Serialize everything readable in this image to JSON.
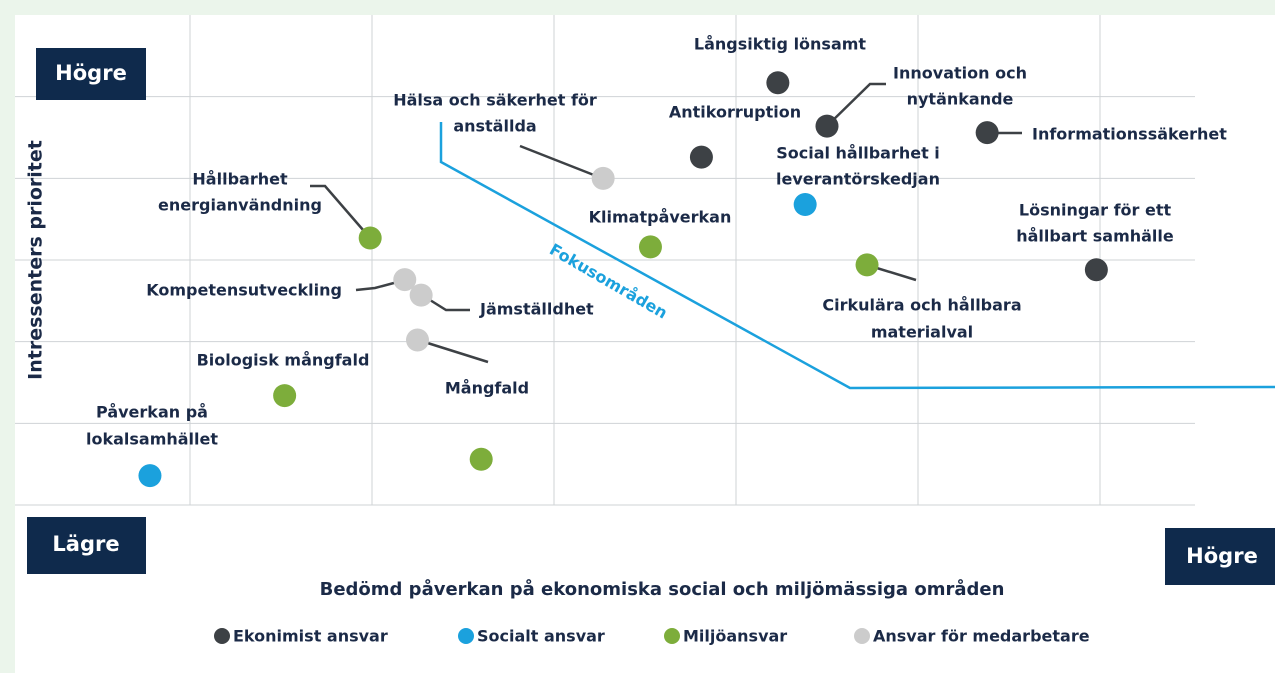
{
  "chart_data": {
    "type": "scatter",
    "x_label": "Bedömd påverkan på ekonomiska social och miljömässiga områden",
    "y_label": "Intressenters prioritet",
    "corner_labels": {
      "y_high": "Högre",
      "low": "Lägre",
      "x_high": "Högre"
    },
    "annotation": "Fokusområden",
    "xlim": [
      0,
      7
    ],
    "ylim": [
      0,
      6
    ],
    "xticks": [
      1,
      2,
      3,
      4,
      5,
      6
    ],
    "yticks": [
      1,
      2,
      3,
      4,
      5
    ],
    "grid": true,
    "legend": "bottom",
    "series": [
      {
        "name": "Ekonimist ansvar",
        "color": "#3d4145",
        "x": [
          4.23,
          4.5,
          5.38,
          3.81,
          5.98
        ],
        "y": [
          5.17,
          4.64,
          4.56,
          4.26,
          2.88
        ],
        "labels": [
          [
            "Långsiktig lönsamt"
          ],
          [
            "Innovation och",
            "nytänkande"
          ],
          [
            "Informationssäkerhet"
          ],
          [
            "Antikorruption"
          ],
          [
            "Lösningar för ett",
            "hållbart samhälle"
          ]
        ]
      },
      {
        "name": "Socialt ansvar",
        "color": "#1ba1dd",
        "x": [
          4.38,
          0.78
        ],
        "y": [
          3.68,
          0.36
        ],
        "labels": [
          [
            "Social hållbarhet i",
            "leverantörskedjan"
          ],
          [
            "Påverkan på",
            "lokalsamhället"
          ]
        ]
      },
      {
        "name": "Miljöansvar",
        "color": "#7dad3b",
        "x": [
          1.99,
          3.53,
          4.72,
          1.52,
          2.6
        ],
        "y": [
          3.27,
          3.16,
          2.94,
          1.34,
          0.56
        ],
        "labels": [
          [
            "Hållbarhet",
            "energianvändning"
          ],
          [
            "Klimatpåverkan"
          ],
          [
            "Cirkulära och hållbara",
            "materialval"
          ],
          [
            "Biologisk mångfald"
          ],
          null
        ]
      },
      {
        "name": "Ansvar för medarbetare",
        "color": "#cccccc",
        "x": [
          3.27,
          2.18,
          2.27,
          2.25
        ],
        "y": [
          4.0,
          2.76,
          2.57,
          2.02
        ],
        "labels": [
          [
            "Hälsa och säkerhet för",
            "anställda"
          ],
          [
            "Kompetensutveckling"
          ],
          [
            "Jämställdhet"
          ],
          [
            "Mångfald"
          ]
        ]
      }
    ]
  }
}
